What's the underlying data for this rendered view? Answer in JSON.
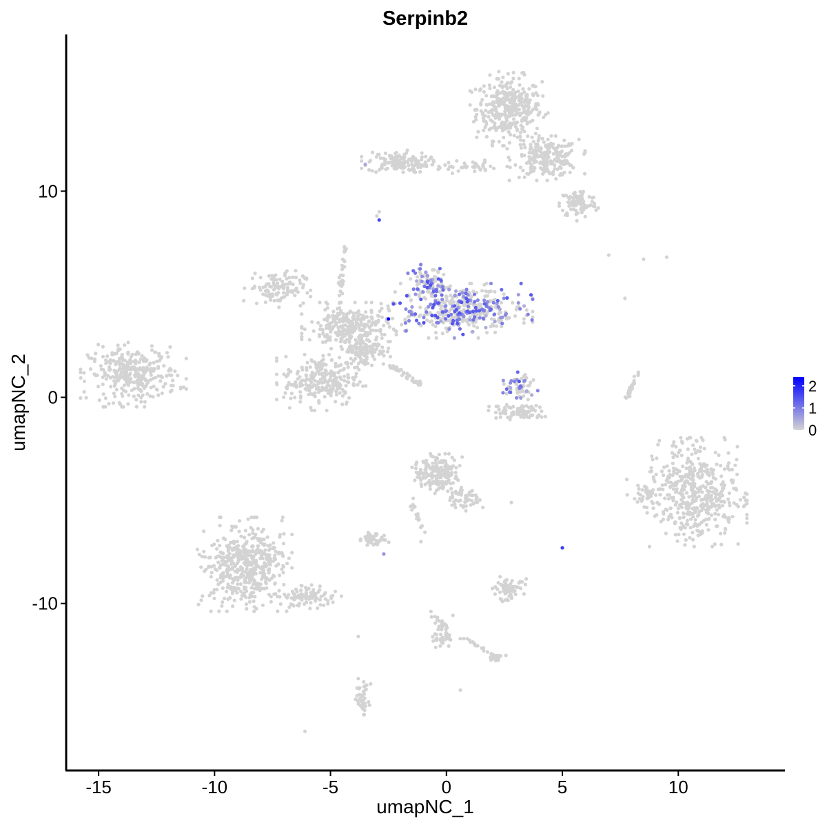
{
  "chart_data": {
    "type": "scatter",
    "title": "Serpinb2",
    "xlabel": "umapNC_1",
    "ylabel": "umapNC_2",
    "xlim": [
      -16.4,
      14.6
    ],
    "ylim": [
      -18.1,
      17.6
    ],
    "x_ticks": [
      -15,
      -10,
      -5,
      0,
      5,
      10
    ],
    "x_tick_labels": [
      "-15",
      "-10",
      "-5",
      "0",
      "5",
      "10"
    ],
    "y_ticks": [
      -10,
      0,
      10
    ],
    "y_tick_labels": [
      "-10",
      "0",
      "10"
    ],
    "grid": false,
    "legend_position": "right",
    "color_scale": {
      "low_color": "#d3d3d3",
      "high_color": "#0000ff",
      "min": 0,
      "max": 2.4,
      "ticks": [
        0,
        1,
        2
      ],
      "tick_labels": [
        "0",
        "1",
        "2"
      ]
    },
    "clusters": [
      {
        "id": "top-right-big",
        "cx": 2.7,
        "cy": 14.0,
        "rx": 1.4,
        "ry": 1.5,
        "n": 360,
        "expr": 0
      },
      {
        "id": "top-right-mid",
        "cx": 4.3,
        "cy": 11.6,
        "rx": 1.4,
        "ry": 0.9,
        "n": 220,
        "expr": 0
      },
      {
        "id": "top-right-tail",
        "cx": 5.7,
        "cy": 9.4,
        "rx": 0.8,
        "ry": 0.7,
        "n": 90,
        "expr": 0
      },
      {
        "id": "top-left-strip",
        "cx": -2.1,
        "cy": 11.4,
        "rx": 1.3,
        "ry": 0.5,
        "n": 130,
        "expr": 0
      },
      {
        "id": "top-bridge",
        "cx": 0.6,
        "cy": 11.2,
        "rx": 1.5,
        "ry": 0.3,
        "n": 45,
        "expr": 0
      },
      {
        "id": "far-left",
        "cx": -13.5,
        "cy": 1.1,
        "rx": 1.9,
        "ry": 1.3,
        "n": 320,
        "expr": 0
      },
      {
        "id": "center-hub",
        "cx": -4.2,
        "cy": 3.4,
        "rx": 1.7,
        "ry": 1.0,
        "n": 260,
        "expr": 0
      },
      {
        "id": "center-left-arm",
        "cx": -7.3,
        "cy": 5.3,
        "rx": 1.2,
        "ry": 0.8,
        "n": 110,
        "expr": 0
      },
      {
        "id": "center-lower-blob",
        "cx": -5.4,
        "cy": 0.8,
        "rx": 1.6,
        "ry": 1.2,
        "n": 240,
        "expr": 0
      },
      {
        "id": "center-neck",
        "cx": -3.5,
        "cy": 2.3,
        "rx": 0.9,
        "ry": 0.8,
        "n": 120,
        "expr": 0
      },
      {
        "id": "center-right-arm",
        "cx": 0.6,
        "cy": 4.2,
        "rx": 2.6,
        "ry": 1.1,
        "n": 420,
        "expr": 0.35
      },
      {
        "id": "center-right-top",
        "cx": -0.7,
        "cy": 5.6,
        "rx": 0.8,
        "ry": 0.7,
        "n": 90,
        "expr": 0.45
      },
      {
        "id": "mid-right-small",
        "cx": 3.1,
        "cy": 0.5,
        "rx": 0.7,
        "ry": 0.6,
        "n": 60,
        "expr": 0.35
      },
      {
        "id": "mid-right-arc",
        "cx": 3.2,
        "cy": -0.7,
        "rx": 1.2,
        "ry": 0.35,
        "n": 80,
        "expr": 0
      },
      {
        "id": "right-big",
        "cx": 10.8,
        "cy": -4.6,
        "rx": 1.8,
        "ry": 2.2,
        "n": 480,
        "expr": 0
      },
      {
        "id": "right-left-lobe",
        "cx": 8.5,
        "cy": -4.7,
        "rx": 0.6,
        "ry": 0.6,
        "n": 40,
        "expr": 0
      },
      {
        "id": "bottom-left-big",
        "cx": -8.7,
        "cy": -8.1,
        "rx": 1.7,
        "ry": 1.9,
        "n": 480,
        "expr": 0
      },
      {
        "id": "bottom-left-tail",
        "cx": -6.0,
        "cy": -9.7,
        "rx": 1.3,
        "ry": 0.5,
        "n": 90,
        "expr": 0
      },
      {
        "id": "bottom-center",
        "cx": -0.4,
        "cy": -3.7,
        "rx": 0.9,
        "ry": 0.8,
        "n": 180,
        "expr": 0
      },
      {
        "id": "bottom-center-arm",
        "cx": 0.8,
        "cy": -4.9,
        "rx": 0.7,
        "ry": 0.5,
        "n": 50,
        "expr": 0
      },
      {
        "id": "bottom-center-small",
        "cx": -3.1,
        "cy": -6.9,
        "rx": 0.6,
        "ry": 0.3,
        "n": 40,
        "expr": 0
      },
      {
        "id": "bottom-mid-right",
        "cx": 2.6,
        "cy": -9.3,
        "rx": 0.7,
        "ry": 0.5,
        "n": 70,
        "expr": 0
      },
      {
        "id": "bottom-low-strip",
        "cx": -3.6,
        "cy": -14.6,
        "rx": 0.3,
        "ry": 0.8,
        "n": 40,
        "expr": 0
      },
      {
        "id": "bottom-low-small",
        "cx": 2.1,
        "cy": -12.6,
        "rx": 0.5,
        "ry": 0.2,
        "n": 20,
        "expr": 0
      },
      {
        "id": "bottom-center-low",
        "cx": -0.2,
        "cy": -11.5,
        "rx": 0.4,
        "ry": 0.9,
        "n": 35,
        "expr": 0
      }
    ],
    "strands": [
      {
        "id": "diag-strand",
        "x0": -2.4,
        "y0": 1.6,
        "x1": -1.1,
        "y1": 0.6,
        "n": 40,
        "expr": 0
      },
      {
        "id": "right-vertical",
        "x0": 7.8,
        "y0": 0.0,
        "x1": 8.3,
        "y1": 1.2,
        "n": 25,
        "expr": 0
      },
      {
        "id": "up-strand",
        "x0": -4.6,
        "y0": 4.2,
        "x1": -4.4,
        "y1": 7.3,
        "n": 30,
        "expr": 0
      },
      {
        "id": "lower-strand",
        "x0": -1.5,
        "y0": -5.0,
        "x1": -1.0,
        "y1": -6.5,
        "n": 18,
        "expr": 0
      },
      {
        "id": "bottom-strand",
        "x0": -0.7,
        "y0": -10.3,
        "x1": 0.3,
        "y1": -11.8,
        "n": 20,
        "expr": 0
      },
      {
        "id": "bottom-strand-2",
        "x0": 0.6,
        "y0": -11.6,
        "x1": 2.2,
        "y1": -12.6,
        "n": 18,
        "expr": 0
      }
    ],
    "scattered_points": [
      {
        "x": -2.9,
        "y": 8.6,
        "v": 1.6
      },
      {
        "x": -2.5,
        "y": 3.8,
        "v": 2.4
      },
      {
        "x": 5.0,
        "y": -7.3,
        "v": 1.7
      },
      {
        "x": -2.7,
        "y": -7.6,
        "v": 0.7
      },
      {
        "x": -3.5,
        "y": 11.3,
        "v": 0.5
      },
      {
        "x": 2.6,
        "y": 0.4,
        "v": 1.2
      },
      {
        "x": 7.0,
        "y": 6.9,
        "v": 0
      },
      {
        "x": 9.5,
        "y": 6.8,
        "v": 0
      },
      {
        "x": 8.5,
        "y": 6.7,
        "v": 0
      },
      {
        "x": 7.7,
        "y": 4.8,
        "v": 0
      },
      {
        "x": -3.8,
        "y": -11.6,
        "v": 0
      },
      {
        "x": -6.1,
        "y": -16.2,
        "v": 0
      },
      {
        "x": 0.6,
        "y": -14.2,
        "v": 0
      },
      {
        "x": 2.8,
        "y": -5.1,
        "v": 0
      },
      {
        "x": -2.9,
        "y": 9.0,
        "v": 0
      },
      {
        "x": -3.0,
        "y": 8.8,
        "v": 0
      },
      {
        "x": -4.4,
        "y": 7.3,
        "v": 0
      },
      {
        "x": -1.1,
        "y": -7.0,
        "v": 0
      }
    ]
  }
}
